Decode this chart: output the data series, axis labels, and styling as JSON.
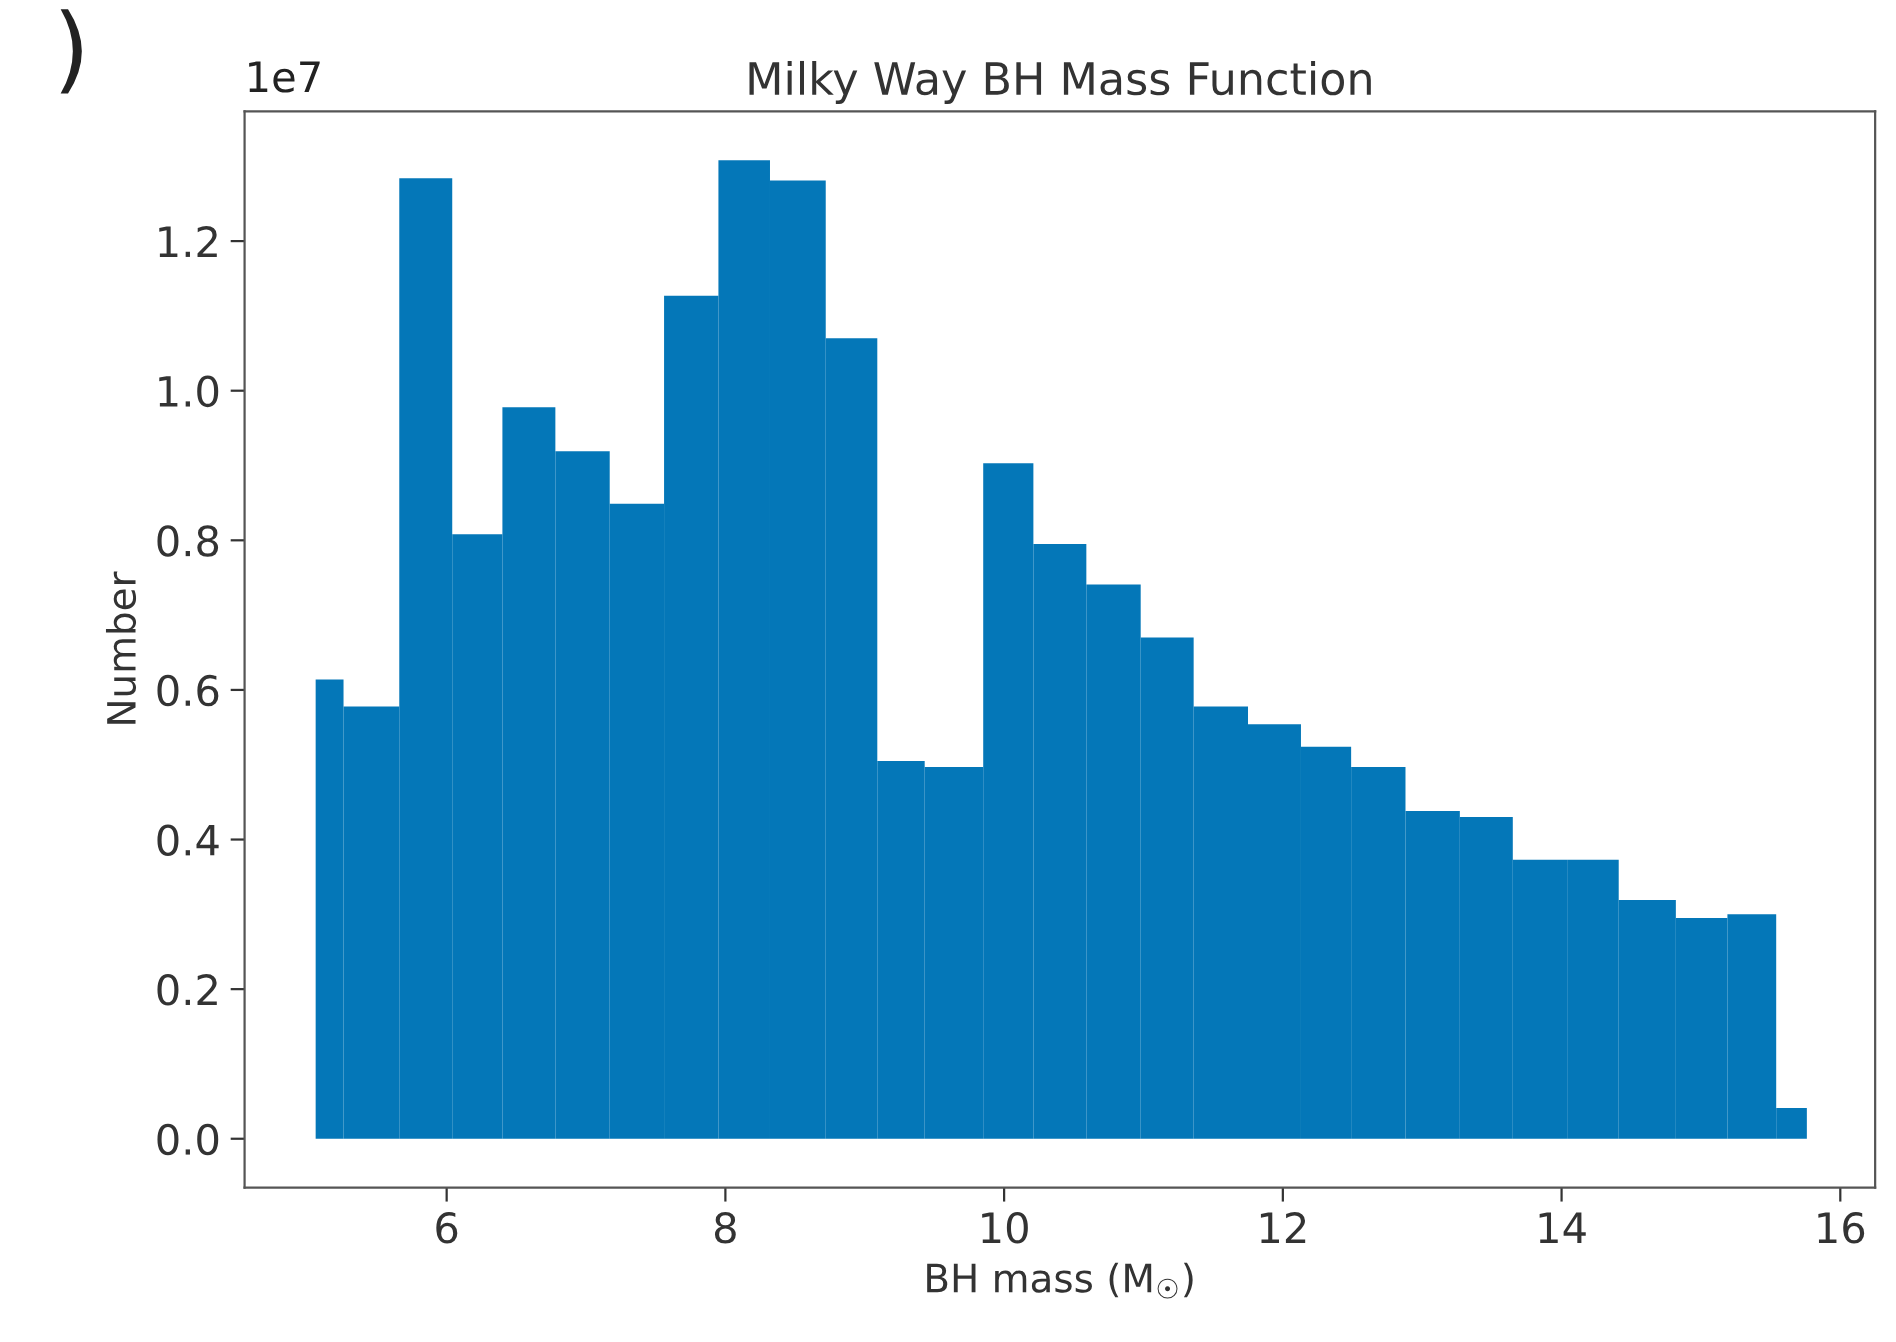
{
  "chart_data": {
    "type": "histogram",
    "title": "Milky Way BH Mass Function",
    "xlabel": "BH mass (M$_{☉}$)",
    "ylabel": "Number",
    "bins": [
      5.06,
      5.26,
      5.66,
      6.04,
      6.4,
      6.78,
      7.17,
      7.56,
      7.95,
      8.32,
      8.72,
      9.09,
      9.43,
      9.85,
      10.21,
      10.59,
      10.98,
      11.36,
      11.75,
      12.13,
      12.49,
      12.88,
      13.27,
      13.65,
      14.04,
      14.41,
      14.82,
      15.19,
      15.54,
      15.76
    ],
    "values": [
      0.614,
      0.578,
      1.284,
      0.808,
      0.978,
      0.919,
      0.849,
      1.127,
      1.308,
      1.281,
      1.07,
      0.505,
      0.497,
      0.903,
      0.795,
      0.741,
      0.67,
      0.578,
      0.554,
      0.524,
      0.497,
      0.438,
      0.43,
      0.373,
      0.373,
      0.319,
      0.295,
      0.3,
      0.041
    ],
    "color": "#0477b8",
    "xlim": [
      4.55,
      16.25
    ],
    "xticks": [
      6,
      8,
      10,
      12,
      14,
      16
    ],
    "ylim": [
      -0.0654,
      1.3734
    ],
    "yticks": [
      {
        "value": 0,
        "label": "0.0"
      },
      0.2,
      0.4,
      0.6,
      0.8,
      {
        "value": 1,
        "label": "1.0"
      },
      1.2
    ],
    "annotations": [
      "1e7",
      ")"
    ],
    "grid": false,
    "legend": false
  }
}
